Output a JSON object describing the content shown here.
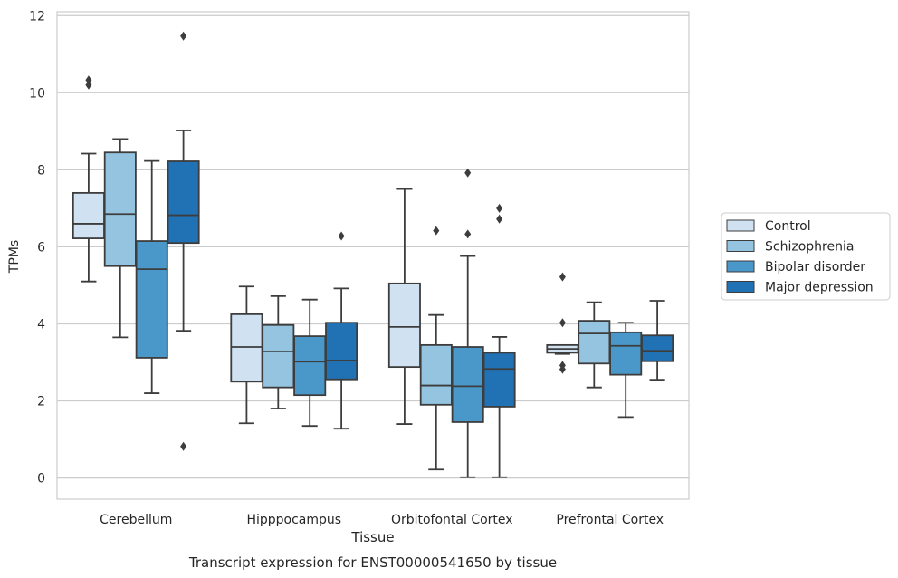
{
  "chart_data": {
    "type": "boxplot",
    "title": "Transcript expression for ENST00000541650 by tissue",
    "xlabel": "Tissue",
    "ylabel": "TPMs",
    "ylim": [
      -0.55,
      12.1
    ],
    "yticks": [
      0,
      2,
      4,
      6,
      8,
      10,
      12
    ],
    "grid": "horizontal",
    "legend_position": "right",
    "categories": [
      "Cerebellum",
      "Hipppocampus",
      "Orbitofontal Cortex",
      "Prefrontal Cortex"
    ],
    "series": [
      {
        "name": "Control",
        "color": "#d0e1f2",
        "boxes": [
          {
            "whislo": 5.1,
            "q1": 6.22,
            "med": 6.6,
            "q3": 7.4,
            "whishi": 8.42,
            "fliers": [
              10.2,
              10.33
            ]
          },
          {
            "whislo": 1.42,
            "q1": 2.5,
            "med": 3.4,
            "q3": 4.25,
            "whishi": 4.97,
            "fliers": []
          },
          {
            "whislo": 1.4,
            "q1": 2.88,
            "med": 3.92,
            "q3": 5.05,
            "whishi": 7.5,
            "fliers": []
          },
          {
            "whislo": 3.22,
            "q1": 3.25,
            "med": 3.35,
            "q3": 3.45,
            "whishi": 3.45,
            "fliers": [
              5.22,
              4.03,
              2.92,
              2.82
            ]
          }
        ]
      },
      {
        "name": "Schizophrenia",
        "color": "#94c4df",
        "boxes": [
          {
            "whislo": 3.65,
            "q1": 5.5,
            "med": 6.85,
            "q3": 8.45,
            "whishi": 8.8,
            "fliers": []
          },
          {
            "whislo": 1.8,
            "q1": 2.35,
            "med": 3.28,
            "q3": 3.97,
            "whishi": 4.72,
            "fliers": []
          },
          {
            "whislo": 0.22,
            "q1": 1.9,
            "med": 2.4,
            "q3": 3.45,
            "whishi": 4.23,
            "fliers": [
              6.42
            ]
          },
          {
            "whislo": 2.35,
            "q1": 2.97,
            "med": 3.75,
            "q3": 4.08,
            "whishi": 4.56,
            "fliers": []
          }
        ]
      },
      {
        "name": "Bipolar disorder",
        "color": "#4a98c9",
        "boxes": [
          {
            "whislo": 2.2,
            "q1": 3.12,
            "med": 5.42,
            "q3": 6.15,
            "whishi": 8.23,
            "fliers": []
          },
          {
            "whislo": 1.35,
            "q1": 2.15,
            "med": 3.02,
            "q3": 3.68,
            "whishi": 4.63,
            "fliers": []
          },
          {
            "whislo": 0.02,
            "q1": 1.45,
            "med": 2.38,
            "q3": 3.4,
            "whishi": 5.76,
            "fliers": [
              7.92,
              6.33
            ]
          },
          {
            "whislo": 1.58,
            "q1": 2.68,
            "med": 3.43,
            "q3": 3.78,
            "whishi": 4.03,
            "fliers": []
          }
        ]
      },
      {
        "name": "Major depression",
        "color": "#2171b5",
        "boxes": [
          {
            "whislo": 3.82,
            "q1": 6.1,
            "med": 6.82,
            "q3": 8.22,
            "whishi": 9.02,
            "fliers": [
              11.47,
              0.82
            ]
          },
          {
            "whislo": 1.28,
            "q1": 2.56,
            "med": 3.05,
            "q3": 4.03,
            "whishi": 4.92,
            "fliers": [
              6.28
            ]
          },
          {
            "whislo": 0.02,
            "q1": 1.85,
            "med": 2.83,
            "q3": 3.25,
            "whishi": 3.66,
            "fliers": [
              7.0,
              6.72
            ]
          },
          {
            "whislo": 2.55,
            "q1": 3.03,
            "med": 3.3,
            "q3": 3.7,
            "whishi": 4.6,
            "fliers": []
          }
        ]
      }
    ]
  }
}
